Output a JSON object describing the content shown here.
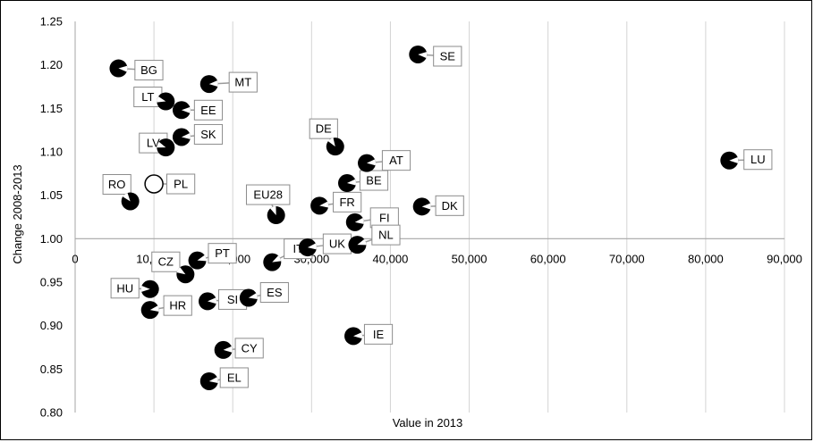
{
  "chart_data": {
    "type": "scatter",
    "title": "",
    "xlabel": "Value in 2013",
    "ylabel": "Change 2008-2013",
    "xlim": [
      0,
      90000
    ],
    "ylim": [
      0.8,
      1.25
    ],
    "x_ticks": [
      "0",
      "10,000",
      "20,000",
      "30,000",
      "40,000",
      "50,000",
      "60,000",
      "70,000",
      "80,000",
      "90,000"
    ],
    "y_ticks": [
      "0.80",
      "0.85",
      "0.90",
      "0.95",
      "1.00",
      "1.05",
      "1.10",
      "1.15",
      "1.20",
      "1.25"
    ],
    "x_tick_values": [
      0,
      10000,
      20000,
      30000,
      40000,
      50000,
      60000,
      70000,
      80000,
      90000
    ],
    "y_tick_values": [
      0.8,
      0.85,
      0.9,
      0.95,
      1.0,
      1.05,
      1.1,
      1.15,
      1.2,
      1.25
    ],
    "vertical_gridlines": true,
    "horizontal_gridlines": false,
    "x_axis_crosses_at": 1.0,
    "highlighted_point": "PL",
    "points": [
      {
        "label": "BG",
        "x": 5500,
        "y": 1.196
      },
      {
        "label": "MT",
        "x": 17000,
        "y": 1.178
      },
      {
        "label": "LT",
        "x": 11500,
        "y": 1.158
      },
      {
        "label": "EE",
        "x": 13500,
        "y": 1.148
      },
      {
        "label": "SK",
        "x": 13500,
        "y": 1.117
      },
      {
        "label": "LV",
        "x": 11500,
        "y": 1.105
      },
      {
        "label": "RO",
        "x": 7000,
        "y": 1.043
      },
      {
        "label": "PL",
        "x": 10000,
        "y": 1.063
      },
      {
        "label": "SE",
        "x": 43500,
        "y": 1.212
      },
      {
        "label": "DE",
        "x": 33000,
        "y": 1.106
      },
      {
        "label": "AT",
        "x": 37000,
        "y": 1.087
      },
      {
        "label": "BE",
        "x": 34500,
        "y": 1.064
      },
      {
        "label": "FR",
        "x": 31000,
        "y": 1.038
      },
      {
        "label": "FI",
        "x": 35500,
        "y": 1.019
      },
      {
        "label": "DK",
        "x": 44000,
        "y": 1.037
      },
      {
        "label": "EU28",
        "x": 25500,
        "y": 1.027
      },
      {
        "label": "UK",
        "x": 29500,
        "y": 0.99
      },
      {
        "label": "NL",
        "x": 35800,
        "y": 0.993
      },
      {
        "label": "LU",
        "x": 83000,
        "y": 1.09
      },
      {
        "label": "CZ",
        "x": 14000,
        "y": 0.959
      },
      {
        "label": "PT",
        "x": 15500,
        "y": 0.975
      },
      {
        "label": "HU",
        "x": 9500,
        "y": 0.942
      },
      {
        "label": "IT",
        "x": 25000,
        "y": 0.973
      },
      {
        "label": "ES",
        "x": 22000,
        "y": 0.932
      },
      {
        "label": "SI",
        "x": 16800,
        "y": 0.928
      },
      {
        "label": "HR",
        "x": 9500,
        "y": 0.918
      },
      {
        "label": "IE",
        "x": 35300,
        "y": 0.888
      },
      {
        "label": "CY",
        "x": 18800,
        "y": 0.872
      },
      {
        "label": "EL",
        "x": 17000,
        "y": 0.836
      }
    ]
  }
}
